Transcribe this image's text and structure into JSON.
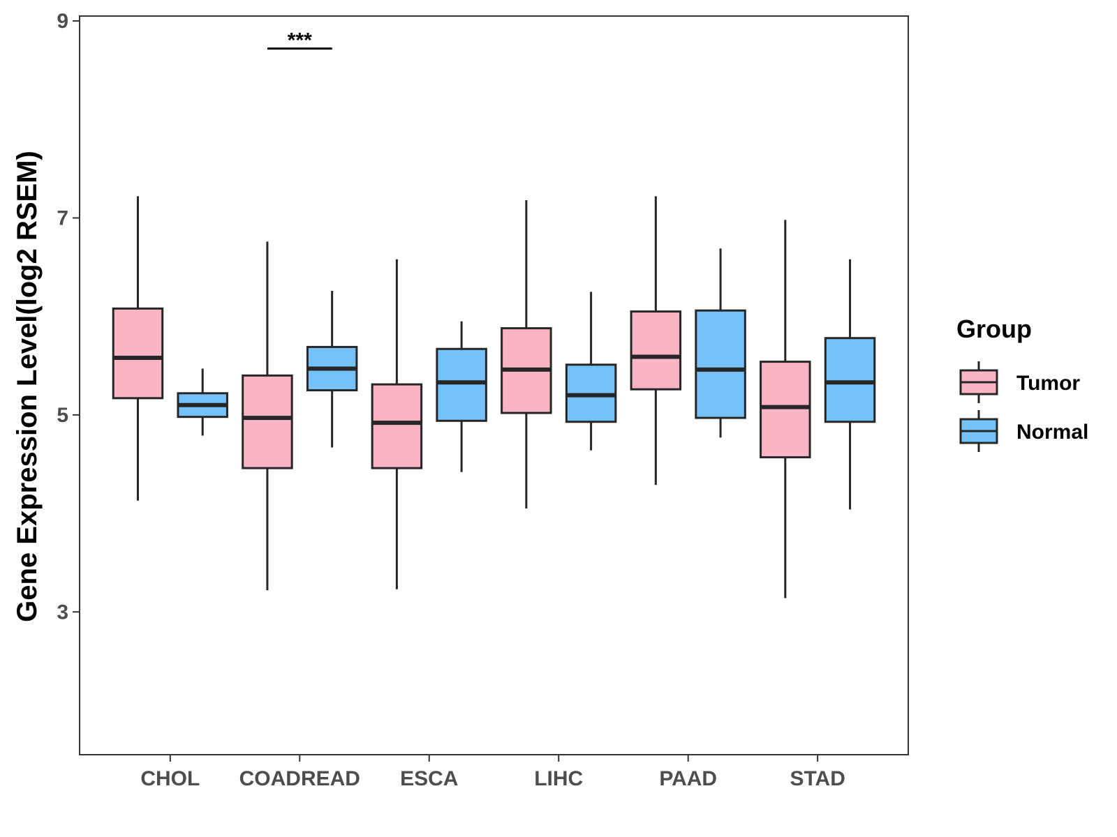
{
  "chart_data": {
    "type": "box",
    "title": "",
    "xlabel": "",
    "ylabel": "Gene Expression Level(log2 RSEM)",
    "ylim": [
      1.55,
      9.05
    ],
    "yticks": [
      3,
      5,
      7,
      9
    ],
    "categories": [
      "CHOL",
      "COADREAD",
      "ESCA",
      "LIHC",
      "PAAD",
      "STAD"
    ],
    "legend": {
      "title": "Group",
      "position": "right",
      "entries": [
        "Tumor",
        "Normal"
      ]
    },
    "series": [
      {
        "name": "Tumor",
        "color": "#FBB4C4",
        "boxes": [
          {
            "min": 4.13,
            "q1": 5.17,
            "median": 5.58,
            "q3": 6.08,
            "max": 7.22
          },
          {
            "min": 3.22,
            "q1": 4.46,
            "median": 4.97,
            "q3": 5.4,
            "max": 6.76
          },
          {
            "min": 3.23,
            "q1": 4.46,
            "median": 4.92,
            "q3": 5.31,
            "max": 6.58
          },
          {
            "min": 4.05,
            "q1": 5.02,
            "median": 5.46,
            "q3": 5.88,
            "max": 7.18
          },
          {
            "min": 4.29,
            "q1": 5.26,
            "median": 5.59,
            "q3": 6.05,
            "max": 7.22
          },
          {
            "min": 3.14,
            "q1": 4.57,
            "median": 5.08,
            "q3": 5.54,
            "max": 6.98
          }
        ]
      },
      {
        "name": "Normal",
        "color": "#77C1F9",
        "boxes": [
          {
            "min": 4.79,
            "q1": 4.98,
            "median": 5.1,
            "q3": 5.22,
            "max": 5.47
          },
          {
            "min": 4.67,
            "q1": 5.25,
            "median": 5.47,
            "q3": 5.69,
            "max": 6.26
          },
          {
            "min": 4.42,
            "q1": 4.94,
            "median": 5.33,
            "q3": 5.67,
            "max": 5.95
          },
          {
            "min": 4.64,
            "q1": 4.93,
            "median": 5.2,
            "q3": 5.51,
            "max": 6.25
          },
          {
            "min": 4.77,
            "q1": 4.97,
            "median": 5.46,
            "q3": 6.06,
            "max": 6.69
          },
          {
            "min": 4.04,
            "q1": 4.93,
            "median": 5.33,
            "q3": 5.78,
            "max": 6.58
          }
        ]
      }
    ],
    "annotations": [
      {
        "category": "COADREAD",
        "text": "***",
        "y": 8.72
      }
    ]
  }
}
